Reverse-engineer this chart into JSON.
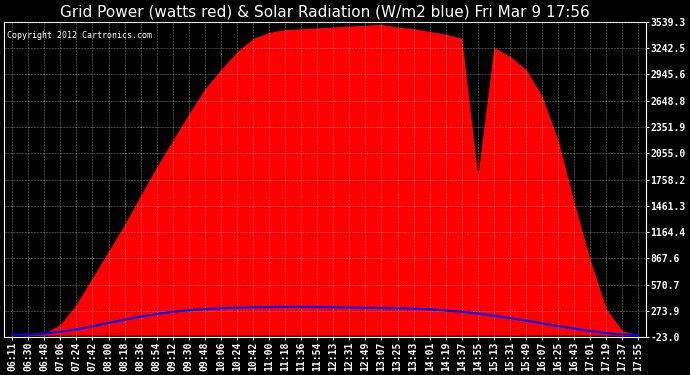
{
  "title": "Grid Power (watts red) & Solar Radiation (W/m2 blue) Fri Mar 9 17:56",
  "copyright": "Copyright 2012 Cartronics.com",
  "title_color": "#ffffff",
  "ymin": -23.0,
  "ymax": 3539.3,
  "yticks": [
    -23.0,
    273.9,
    570.7,
    867.6,
    1164.4,
    1461.3,
    1758.2,
    2055.0,
    2351.9,
    2648.8,
    2945.6,
    3242.5,
    3539.3
  ],
  "x_labels": [
    "06:11",
    "06:30",
    "06:48",
    "07:06",
    "07:24",
    "07:42",
    "08:00",
    "08:18",
    "08:36",
    "08:54",
    "09:12",
    "09:30",
    "09:48",
    "10:06",
    "10:24",
    "10:42",
    "11:00",
    "11:18",
    "11:36",
    "11:54",
    "12:13",
    "12:31",
    "12:49",
    "13:07",
    "13:25",
    "13:43",
    "14:01",
    "14:19",
    "14:37",
    "14:55",
    "15:13",
    "15:31",
    "15:49",
    "16:07",
    "16:25",
    "16:43",
    "17:01",
    "17:19",
    "17:37",
    "17:55"
  ],
  "red_color": "#ff0000",
  "blue_color": "#0000ff",
  "title_fontsize": 11,
  "tick_fontsize": 7,
  "red_values": [
    0,
    5,
    20,
    120,
    350,
    650,
    950,
    1250,
    1580,
    1900,
    2200,
    2500,
    2780,
    3000,
    3200,
    3350,
    3420,
    3450,
    3460,
    3470,
    3480,
    3490,
    3500,
    3510,
    3480,
    3460,
    3430,
    3400,
    3350,
    1800,
    3250,
    3150,
    3000,
    2700,
    2200,
    1500,
    850,
    300,
    50,
    5
  ],
  "blue_values": [
    5,
    10,
    20,
    40,
    65,
    100,
    140,
    175,
    210,
    240,
    265,
    282,
    295,
    305,
    310,
    315,
    318,
    320,
    320,
    318,
    315,
    312,
    310,
    308,
    305,
    300,
    292,
    280,
    265,
    245,
    220,
    195,
    165,
    135,
    105,
    75,
    48,
    25,
    10,
    3
  ]
}
